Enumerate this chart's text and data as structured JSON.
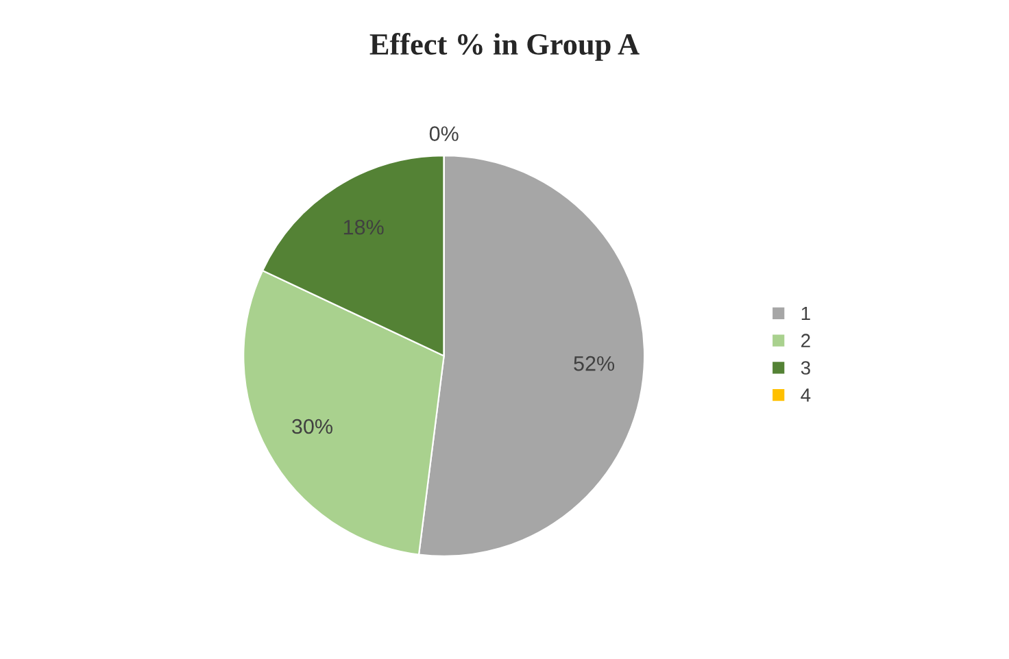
{
  "chart_data": {
    "type": "pie",
    "title": "Effect % in Group A",
    "categories": [
      "1",
      "2",
      "3",
      "4"
    ],
    "values": [
      52,
      30,
      18,
      0
    ],
    "colors": [
      "#a6a6a6",
      "#a9d18e",
      "#548235",
      "#ffc000"
    ],
    "value_labels": [
      "52%",
      "30%",
      "18%",
      "0%"
    ],
    "legend": "right"
  }
}
